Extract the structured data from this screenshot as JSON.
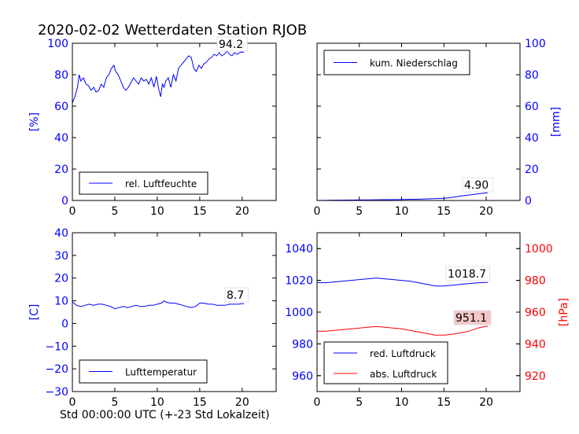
{
  "title": "2020-02-02 Wetterdaten Station RJOB",
  "xlabel": "Std 00:00:00 UTC (+-23 Std Lokalzeit)",
  "colors": {
    "blue": "#0000ff",
    "red": "#ff0000",
    "frame": "#000000",
    "label_box_red": "#f4c2c2",
    "label_box": "#ffffff"
  },
  "chart_data": [
    {
      "type": "line",
      "id": "humidity",
      "ylabel": "[%]",
      "xlim": [
        0,
        24
      ],
      "ylim": [
        0,
        100
      ],
      "xticks": [
        "0",
        "5",
        "10",
        "15",
        "20"
      ],
      "yticks": [
        "0",
        "20",
        "40",
        "60",
        "80",
        "100"
      ],
      "legend": "lower-left",
      "last_value_label": "94.2",
      "series": [
        {
          "name": "rel. Luftfeuchte",
          "color": "#0000ff",
          "x": [
            0,
            0.3,
            0.6,
            0.8,
            1.0,
            1.3,
            1.6,
            1.9,
            2.2,
            2.5,
            2.8,
            3.1,
            3.4,
            3.7,
            4.0,
            4.3,
            4.6,
            4.9,
            5.1,
            5.4,
            5.7,
            6.0,
            6.3,
            6.6,
            6.9,
            7.2,
            7.5,
            7.8,
            8.1,
            8.4,
            8.7,
            9.0,
            9.3,
            9.6,
            9.9,
            10.2,
            10.4,
            10.6,
            10.8,
            11.0,
            11.3,
            11.6,
            11.9,
            12.2,
            12.5,
            12.8,
            13.1,
            13.4,
            13.7,
            14.0,
            14.3,
            14.6,
            14.9,
            15.2,
            15.5,
            15.8,
            16.1,
            16.4,
            16.7,
            17.0,
            17.3,
            17.6,
            17.9,
            18.2,
            18.5,
            18.8,
            19.1,
            19.4,
            19.7,
            20.0,
            20.2
          ],
          "y": [
            62,
            66,
            72,
            80,
            76,
            78,
            74,
            73,
            70,
            72,
            69,
            70,
            74,
            72,
            78,
            80,
            84,
            86,
            82,
            80,
            76,
            72,
            70,
            72,
            75,
            78,
            76,
            74,
            78,
            76,
            77,
            74,
            78,
            72,
            79,
            70,
            66,
            74,
            72,
            76,
            78,
            72,
            80,
            76,
            84,
            86,
            88,
            90,
            92,
            91,
            84,
            82,
            86,
            84,
            87,
            88,
            90,
            91,
            93,
            92,
            94,
            92,
            93,
            95,
            93,
            92,
            94,
            93,
            94,
            94.5,
            94.2
          ]
        }
      ]
    },
    {
      "type": "line",
      "id": "precipitation",
      "ylabel": "[mm]",
      "xlim": [
        0,
        24
      ],
      "ylim": [
        0,
        100
      ],
      "xticks": [
        "0",
        "5",
        "10",
        "15",
        "20"
      ],
      "yticks": [
        "0",
        "20",
        "40",
        "60",
        "80",
        "100"
      ],
      "legend": "top-left",
      "last_value_label": "4.90",
      "series": [
        {
          "name": "kum. Niederschlag",
          "color": "#0000ff",
          "x": [
            0,
            2,
            4,
            6,
            8,
            10,
            12,
            13,
            14,
            15,
            16,
            17,
            18,
            19,
            20,
            20.2
          ],
          "y": [
            0,
            0.2,
            0.3,
            0.4,
            0.5,
            0.6,
            0.8,
            1.0,
            1.2,
            1.4,
            2.0,
            2.8,
            3.5,
            4.2,
            4.8,
            4.9
          ]
        }
      ]
    },
    {
      "type": "line",
      "id": "temperature",
      "ylabel": "[C]",
      "xlim": [
        0,
        24
      ],
      "ylim": [
        -30,
        40
      ],
      "xticks": [
        "0",
        "5",
        "10",
        "15",
        "20"
      ],
      "yticks": [
        "−30",
        "−20",
        "−10",
        "0",
        "10",
        "20",
        "30",
        "40"
      ],
      "legend": "lower-left",
      "last_value_label": "8.7",
      "series": [
        {
          "name": "Lufttemperatur",
          "color": "#0000ff",
          "x": [
            0,
            0.5,
            1,
            1.5,
            2,
            2.5,
            3,
            3.5,
            4,
            4.5,
            5,
            5.5,
            6,
            6.5,
            7,
            7.5,
            8,
            8.5,
            9,
            9.5,
            10,
            10.5,
            10.8,
            11,
            11.5,
            12,
            12.5,
            13,
            13.5,
            14,
            14.5,
            15,
            15.5,
            16,
            16.5,
            17,
            17.5,
            18,
            18.5,
            19,
            19.5,
            20,
            20.2
          ],
          "y": [
            9.5,
            8,
            7.5,
            8,
            8.5,
            8,
            8.5,
            8.5,
            8,
            7.5,
            6.5,
            7,
            7.5,
            7,
            7.5,
            8,
            7.5,
            7.5,
            8,
            8,
            8.5,
            9,
            10,
            9.5,
            9,
            9,
            8.5,
            8,
            7.5,
            7,
            7.5,
            9,
            9,
            8.5,
            8.5,
            8,
            8,
            8,
            8.5,
            8.5,
            8.5,
            8.7,
            8.7
          ]
        }
      ]
    },
    {
      "type": "line",
      "id": "pressure",
      "ylabel_right": "[hPa]",
      "xlim": [
        0,
        24
      ],
      "ylim": [
        950,
        1050
      ],
      "ylim_right": [
        910,
        1010
      ],
      "xticks": [
        "0",
        "5",
        "10",
        "15",
        "20"
      ],
      "yticks": [
        "960",
        "980",
        "1000",
        "1020",
        "1040"
      ],
      "yticks_right": [
        "920",
        "940",
        "960",
        "980",
        "1000"
      ],
      "legend": "lower-left",
      "last_value_labels": [
        "1018.7",
        "951.1"
      ],
      "series": [
        {
          "name": "red. Luftdruck",
          "color": "#0000ff",
          "axis": "left",
          "x": [
            0,
            1,
            2,
            3,
            4,
            5,
            6,
            7,
            8,
            9,
            10,
            11,
            12,
            13,
            14,
            15,
            16,
            17,
            18,
            19,
            20,
            20.2
          ],
          "y": [
            1018.5,
            1018.5,
            1019,
            1019.5,
            1020,
            1020.5,
            1021,
            1021.5,
            1021,
            1020.5,
            1020,
            1019.5,
            1018.5,
            1017.5,
            1016.5,
            1016.5,
            1017,
            1017.5,
            1018,
            1018.5,
            1018.7,
            1018.7
          ]
        },
        {
          "name": "abs. Luftdruck",
          "color": "#ff0000",
          "axis": "right",
          "x": [
            0,
            1,
            2,
            3,
            4,
            5,
            6,
            7,
            8,
            9,
            10,
            11,
            12,
            13,
            14,
            15,
            16,
            17,
            18,
            19,
            20,
            20.2
          ],
          "y": [
            948,
            948,
            948.5,
            949,
            949.5,
            950,
            950.5,
            951,
            950.5,
            950,
            949.5,
            948.5,
            947.5,
            946.5,
            945.5,
            945.5,
            946,
            947,
            948,
            950,
            951.1,
            951.1
          ]
        }
      ]
    }
  ]
}
